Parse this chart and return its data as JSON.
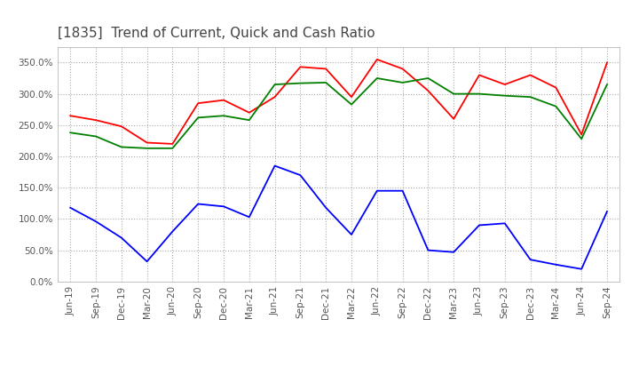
{
  "title": "[1835]  Trend of Current, Quick and Cash Ratio",
  "title_fontsize": 11,
  "ylim": [
    0,
    375
  ],
  "yticks": [
    0,
    50,
    100,
    150,
    200,
    250,
    300,
    350
  ],
  "background_color": "#ffffff",
  "grid_color": "#aaaaaa",
  "labels": [
    "Jun-19",
    "Sep-19",
    "Dec-19",
    "Mar-20",
    "Jun-20",
    "Sep-20",
    "Dec-20",
    "Mar-21",
    "Jun-21",
    "Sep-21",
    "Dec-21",
    "Mar-22",
    "Jun-22",
    "Sep-22",
    "Dec-22",
    "Mar-23",
    "Jun-23",
    "Sep-23",
    "Dec-23",
    "Mar-24",
    "Jun-24",
    "Sep-24"
  ],
  "current_ratio": [
    265,
    258,
    248,
    222,
    220,
    285,
    290,
    270,
    295,
    343,
    340,
    295,
    355,
    340,
    305,
    260,
    330,
    315,
    330,
    310,
    235,
    350
  ],
  "quick_ratio": [
    238,
    232,
    215,
    213,
    213,
    262,
    265,
    258,
    315,
    317,
    318,
    283,
    325,
    318,
    325,
    300,
    300,
    297,
    295,
    280,
    228,
    315
  ],
  "cash_ratio": [
    118,
    96,
    70,
    32,
    80,
    124,
    120,
    103,
    185,
    170,
    118,
    75,
    145,
    145,
    50,
    47,
    90,
    93,
    35,
    27,
    20,
    112
  ],
  "current_color": "#ff0000",
  "quick_color": "#008000",
  "cash_color": "#0000ff",
  "legend_ncol": 3,
  "tick_fontsize": 7.5,
  "title_color": "#444444"
}
